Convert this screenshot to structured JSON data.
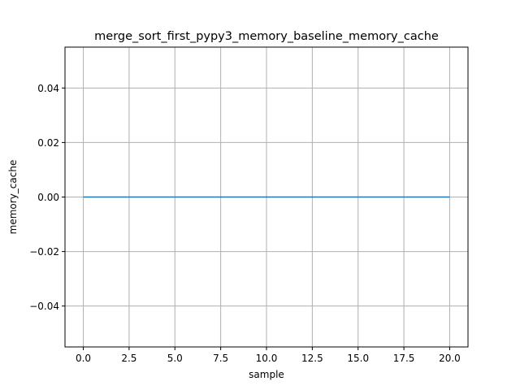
{
  "chart_data": {
    "type": "line",
    "title": "merge_sort_first_pypy3_memory_baseline_memory_cache",
    "xlabel": "sample",
    "ylabel": "memory_cache",
    "xlim": [
      -1.0,
      21.0
    ],
    "ylim": [
      -0.055,
      0.055
    ],
    "grid": true,
    "x_ticks": [
      0.0,
      2.5,
      5.0,
      7.5,
      10.0,
      12.5,
      15.0,
      17.5,
      20.0
    ],
    "x_tick_labels": [
      "0.0",
      "2.5",
      "5.0",
      "7.5",
      "10.0",
      "12.5",
      "15.0",
      "17.5",
      "20.0"
    ],
    "y_ticks": [
      -0.04,
      -0.02,
      0.0,
      0.02,
      0.04
    ],
    "y_tick_labels": [
      "−0.04",
      "−0.02",
      "0.00",
      "0.02",
      "0.04"
    ],
    "series": [
      {
        "color": "#1f77b4",
        "x": [
          0,
          1,
          2,
          3,
          4,
          5,
          6,
          7,
          8,
          9,
          10,
          11,
          12,
          13,
          14,
          15,
          16,
          17,
          18,
          19,
          20
        ],
        "y": [
          0,
          0,
          0,
          0,
          0,
          0,
          0,
          0,
          0,
          0,
          0,
          0,
          0,
          0,
          0,
          0,
          0,
          0,
          0,
          0,
          0
        ]
      }
    ]
  }
}
